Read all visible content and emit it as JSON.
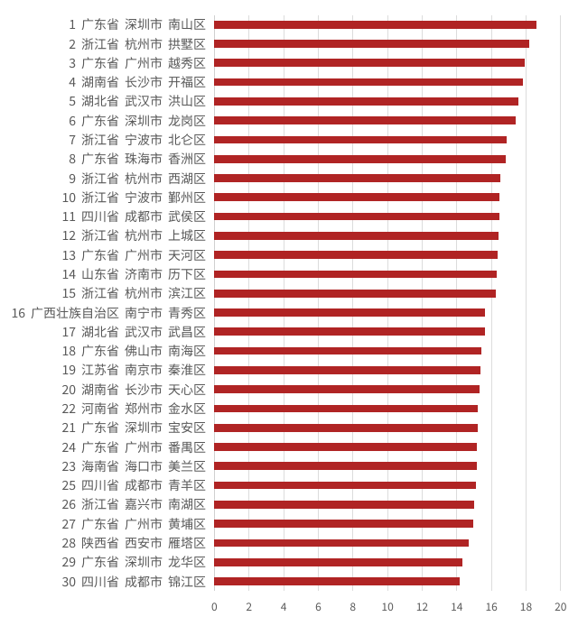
{
  "chart_data": {
    "type": "bar",
    "orientation": "horizontal",
    "title": "",
    "xlabel": "",
    "ylabel": "",
    "xlim": [
      0,
      20
    ],
    "x_ticks": [
      0,
      2,
      4,
      6,
      8,
      10,
      12,
      14,
      16,
      18,
      20
    ],
    "grid": "vertical",
    "legend": "none",
    "bar_color": "#b02424",
    "gridline_color": "#dcdcdc",
    "axis_line_color": "#d0d0d0",
    "label_color": "#595959",
    "background_color": "#ffffff",
    "rows": [
      {
        "rank": 1,
        "province": "广东省",
        "city": "深圳市",
        "district": "南山区",
        "value": 18.61
      },
      {
        "rank": 2,
        "province": "浙江省",
        "city": "杭州市",
        "district": "拱墅区",
        "value": 18.21
      },
      {
        "rank": 3,
        "province": "广东省",
        "city": "广州市",
        "district": "越秀区",
        "value": 17.9
      },
      {
        "rank": 4,
        "province": "湖南省",
        "city": "长沙市",
        "district": "开福区",
        "value": 17.82
      },
      {
        "rank": 5,
        "province": "湖北省",
        "city": "武汉市",
        "district": "洪山区",
        "value": 17.56
      },
      {
        "rank": 6,
        "province": "广东省",
        "city": "深圳市",
        "district": "龙岗区",
        "value": 17.42
      },
      {
        "rank": 7,
        "province": "浙江省",
        "city": "宁波市",
        "district": "北仑区",
        "value": 16.86
      },
      {
        "rank": 8,
        "province": "广东省",
        "city": "珠海市",
        "district": "香洲区",
        "value": 16.83
      },
      {
        "rank": 9,
        "province": "浙江省",
        "city": "杭州市",
        "district": "西湖区",
        "value": 16.53
      },
      {
        "rank": 10,
        "province": "浙江省",
        "city": "宁波市",
        "district": "鄞州区",
        "value": 16.48
      },
      {
        "rank": 11,
        "province": "四川省",
        "city": "成都市",
        "district": "武侯区",
        "value": 16.44
      },
      {
        "rank": 12,
        "province": "浙江省",
        "city": "杭州市",
        "district": "上城区",
        "value": 16.4
      },
      {
        "rank": 13,
        "province": "广东省",
        "city": "广州市",
        "district": "天河区",
        "value": 16.35
      },
      {
        "rank": 14,
        "province": "山东省",
        "city": "济南市",
        "district": "历下区",
        "value": 16.33
      },
      {
        "rank": 15,
        "province": "浙江省",
        "city": "杭州市",
        "district": "滨江区",
        "value": 16.27
      },
      {
        "rank": 16,
        "province": "广西壮族自治区",
        "city": "南宁市",
        "district": "青秀区",
        "value": 15.65
      },
      {
        "rank": 17,
        "province": "湖北省",
        "city": "武汉市",
        "district": "武昌区",
        "value": 15.63
      },
      {
        "rank": 18,
        "province": "广东省",
        "city": "佛山市",
        "district": "南海区",
        "value": 15.42
      },
      {
        "rank": 19,
        "province": "江苏省",
        "city": "南京市",
        "district": "秦淮区",
        "value": 15.37
      },
      {
        "rank": 20,
        "province": "湖南省",
        "city": "长沙市",
        "district": "天心区",
        "value": 15.3
      },
      {
        "rank": 22,
        "province": "河南省",
        "city": "郑州市",
        "district": "金水区",
        "value": 15.21
      },
      {
        "rank": 21,
        "province": "广东省",
        "city": "深圳市",
        "district": "宝安区",
        "value": 15.2
      },
      {
        "rank": 24,
        "province": "广东省",
        "city": "广州市",
        "district": "番禺区",
        "value": 15.18
      },
      {
        "rank": 23,
        "province": "海南省",
        "city": "海口市",
        "district": "美兰区",
        "value": 15.17
      },
      {
        "rank": 25,
        "province": "四川省",
        "city": "成都市",
        "district": "青羊区",
        "value": 15.1
      },
      {
        "rank": 26,
        "province": "浙江省",
        "city": "嘉兴市",
        "district": "南湖区",
        "value": 15.02
      },
      {
        "rank": 27,
        "province": "广东省",
        "city": "广州市",
        "district": "黄埔区",
        "value": 14.97
      },
      {
        "rank": 28,
        "province": "陕西省",
        "city": "西安市",
        "district": "雁塔区",
        "value": 14.68
      },
      {
        "rank": 29,
        "province": "广东省",
        "city": "深圳市",
        "district": "龙华区",
        "value": 14.35
      },
      {
        "rank": 30,
        "province": "四川省",
        "city": "成都市",
        "district": "锦江区",
        "value": 14.18
      }
    ]
  }
}
